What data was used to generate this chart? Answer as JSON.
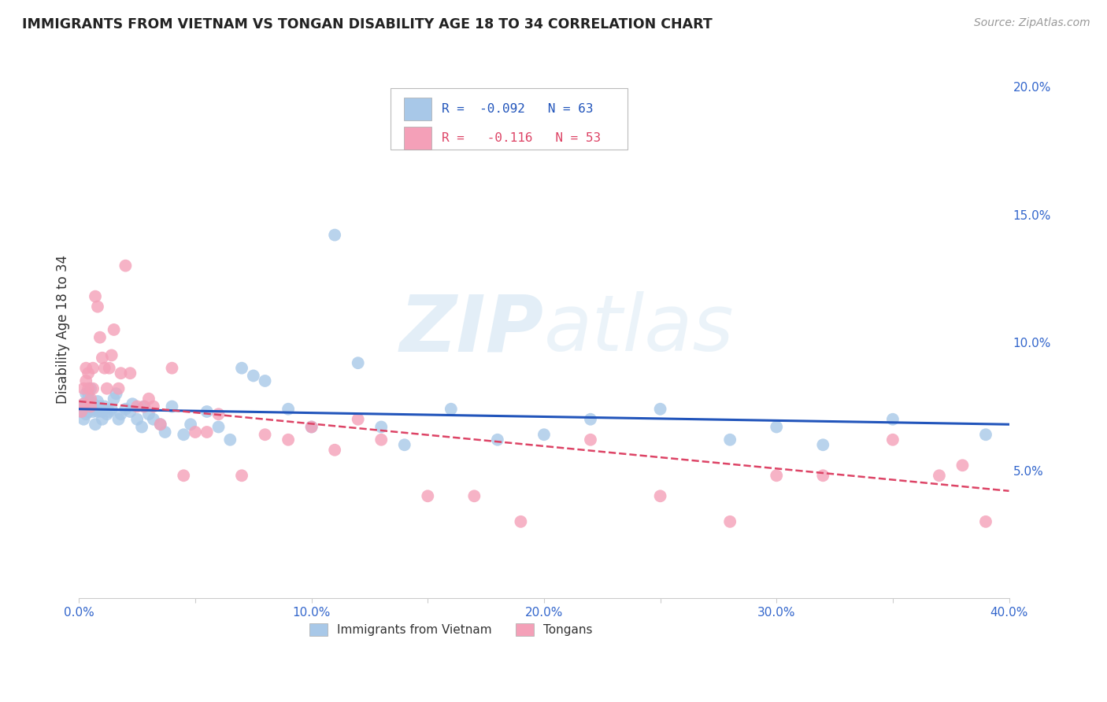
{
  "title": "IMMIGRANTS FROM VIETNAM VS TONGAN DISABILITY AGE 18 TO 34 CORRELATION CHART",
  "source": "Source: ZipAtlas.com",
  "ylabel": "Disability Age 18 to 34",
  "legend_label1": "Immigrants from Vietnam",
  "legend_label2": "Tongans",
  "r1": -0.092,
  "n1": 63,
  "r2": -0.116,
  "n2": 53,
  "color1": "#a8c8e8",
  "color2": "#f4a0b8",
  "trendline1_color": "#2255bb",
  "trendline2_color": "#dd4466",
  "watermark_zip": "ZIP",
  "watermark_atlas": "atlas",
  "xlim": [
    0.0,
    0.4
  ],
  "ylim": [
    0.0,
    0.21
  ],
  "xtick_vals": [
    0.0,
    0.05,
    0.1,
    0.15,
    0.2,
    0.25,
    0.3,
    0.35,
    0.4
  ],
  "yticks_right": [
    0.05,
    0.1,
    0.15,
    0.2
  ],
  "background_color": "#ffffff",
  "scatter1_x": [
    0.001,
    0.001,
    0.002,
    0.002,
    0.003,
    0.003,
    0.004,
    0.004,
    0.004,
    0.005,
    0.005,
    0.006,
    0.006,
    0.007,
    0.007,
    0.008,
    0.008,
    0.009,
    0.01,
    0.01,
    0.011,
    0.012,
    0.013,
    0.014,
    0.015,
    0.016,
    0.017,
    0.018,
    0.02,
    0.022,
    0.023,
    0.025,
    0.027,
    0.028,
    0.03,
    0.032,
    0.035,
    0.037,
    0.04,
    0.045,
    0.048,
    0.055,
    0.06,
    0.065,
    0.07,
    0.075,
    0.08,
    0.09,
    0.1,
    0.11,
    0.12,
    0.13,
    0.14,
    0.16,
    0.18,
    0.2,
    0.22,
    0.25,
    0.28,
    0.3,
    0.32,
    0.35,
    0.39
  ],
  "scatter1_y": [
    0.075,
    0.073,
    0.076,
    0.07,
    0.072,
    0.08,
    0.078,
    0.073,
    0.08,
    0.074,
    0.082,
    0.073,
    0.076,
    0.074,
    0.068,
    0.077,
    0.073,
    0.075,
    0.073,
    0.07,
    0.075,
    0.072,
    0.073,
    0.074,
    0.078,
    0.08,
    0.07,
    0.072,
    0.074,
    0.073,
    0.076,
    0.07,
    0.067,
    0.075,
    0.072,
    0.07,
    0.068,
    0.065,
    0.075,
    0.064,
    0.068,
    0.073,
    0.067,
    0.062,
    0.09,
    0.087,
    0.085,
    0.074,
    0.067,
    0.142,
    0.092,
    0.067,
    0.06,
    0.074,
    0.062,
    0.064,
    0.07,
    0.074,
    0.062,
    0.067,
    0.06,
    0.07,
    0.064
  ],
  "scatter2_x": [
    0.001,
    0.002,
    0.002,
    0.003,
    0.003,
    0.004,
    0.004,
    0.005,
    0.005,
    0.006,
    0.006,
    0.007,
    0.008,
    0.009,
    0.01,
    0.011,
    0.012,
    0.013,
    0.014,
    0.015,
    0.017,
    0.018,
    0.02,
    0.022,
    0.025,
    0.028,
    0.03,
    0.032,
    0.035,
    0.04,
    0.045,
    0.05,
    0.055,
    0.06,
    0.07,
    0.08,
    0.09,
    0.1,
    0.11,
    0.12,
    0.13,
    0.15,
    0.17,
    0.19,
    0.22,
    0.25,
    0.28,
    0.3,
    0.32,
    0.35,
    0.37,
    0.38,
    0.39
  ],
  "scatter2_y": [
    0.073,
    0.076,
    0.082,
    0.085,
    0.09,
    0.082,
    0.088,
    0.078,
    0.075,
    0.09,
    0.082,
    0.118,
    0.114,
    0.102,
    0.094,
    0.09,
    0.082,
    0.09,
    0.095,
    0.105,
    0.082,
    0.088,
    0.13,
    0.088,
    0.075,
    0.075,
    0.078,
    0.075,
    0.068,
    0.09,
    0.048,
    0.065,
    0.065,
    0.072,
    0.048,
    0.064,
    0.062,
    0.067,
    0.058,
    0.07,
    0.062,
    0.04,
    0.04,
    0.03,
    0.062,
    0.04,
    0.03,
    0.048,
    0.048,
    0.062,
    0.048,
    0.052,
    0.03
  ],
  "trendline1_start_y": 0.074,
  "trendline1_end_y": 0.068,
  "trendline2_start_y": 0.077,
  "trendline2_end_y": 0.042
}
